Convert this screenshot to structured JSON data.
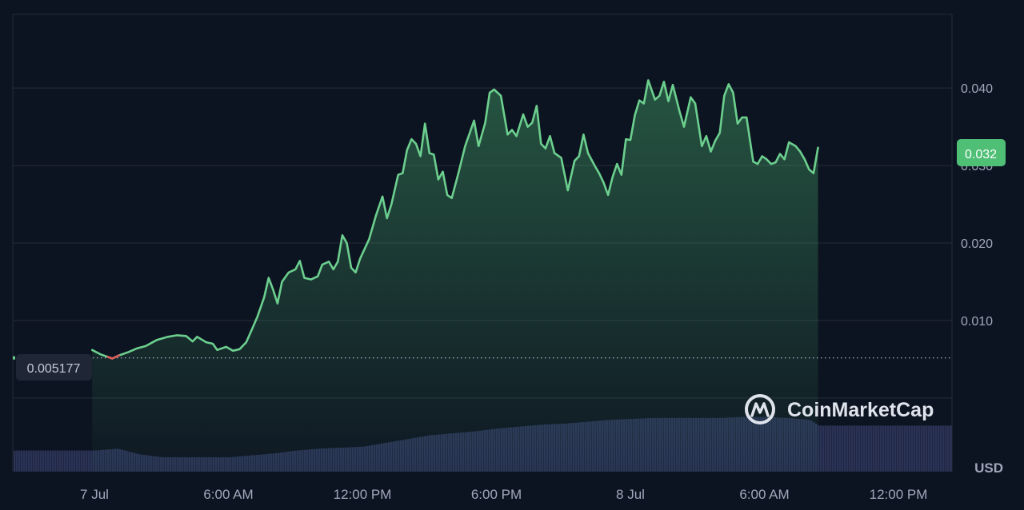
{
  "chart_data": {
    "type": "line",
    "title": "",
    "xlabel": "",
    "ylabel": "",
    "unit_label": "USD",
    "current_value_label": "0.032",
    "reference_label": "0.005177",
    "reference_value": 0.005177,
    "ylim": [
      -0.0095,
      0.0495
    ],
    "y_ticks": [
      0.01,
      0.02,
      0.03,
      0.04
    ],
    "y_tick_labels": [
      "0.010",
      "0.020",
      "0.030",
      "0.040"
    ],
    "x_ticks": [
      {
        "label": "7 Jul",
        "t": 0
      },
      {
        "label": "6:00 AM",
        "t": 6
      },
      {
        "label": "12:00 PM",
        "t": 12
      },
      {
        "label": "6:00 PM",
        "t": 18
      },
      {
        "label": "8 Jul",
        "t": 24
      },
      {
        "label": "6:00 AM",
        "t": 30
      },
      {
        "label": "12:00 PM",
        "t": 36
      }
    ],
    "x_range_hours": [
      -3.5,
      38.4
    ],
    "grid": true,
    "legend": "none",
    "brand": "CoinMarketCap",
    "colors": {
      "background": "#0d1421",
      "up_line": "#6ccf8e",
      "down_line": "#e05a5a",
      "volume": "#2a3356",
      "grid": "#252b39",
      "badge": "#4fbf76"
    },
    "series": [
      {
        "values": [
          [
            -0.1,
            0.0062
          ],
          [
            0.3,
            0.0056
          ],
          [
            0.6,
            0.0053
          ],
          [
            0.8,
            0.0051
          ],
          [
            1.1,
            0.0055
          ],
          [
            1.5,
            0.0059
          ],
          [
            1.9,
            0.0064
          ],
          [
            2.3,
            0.0067
          ],
          [
            2.8,
            0.0075
          ],
          [
            3.3,
            0.0079
          ],
          [
            3.7,
            0.0081
          ],
          [
            4.1,
            0.008
          ],
          [
            4.4,
            0.0073
          ],
          [
            4.6,
            0.0079
          ],
          [
            5.0,
            0.0072
          ],
          [
            5.3,
            0.007
          ],
          [
            5.5,
            0.0062
          ],
          [
            5.9,
            0.0066
          ],
          [
            6.2,
            0.0061
          ],
          [
            6.5,
            0.0063
          ],
          [
            6.8,
            0.0072
          ],
          [
            7.0,
            0.0085
          ],
          [
            7.3,
            0.0105
          ],
          [
            7.6,
            0.013
          ],
          [
            7.8,
            0.0155
          ],
          [
            8.0,
            0.014
          ],
          [
            8.2,
            0.0122
          ],
          [
            8.4,
            0.015
          ],
          [
            8.7,
            0.0162
          ],
          [
            9.0,
            0.0166
          ],
          [
            9.2,
            0.0177
          ],
          [
            9.4,
            0.0155
          ],
          [
            9.7,
            0.0153
          ],
          [
            10.0,
            0.0157
          ],
          [
            10.2,
            0.0172
          ],
          [
            10.5,
            0.0176
          ],
          [
            10.7,
            0.0166
          ],
          [
            10.9,
            0.0176
          ],
          [
            11.1,
            0.021
          ],
          [
            11.3,
            0.02
          ],
          [
            11.5,
            0.0168
          ],
          [
            11.7,
            0.0162
          ],
          [
            11.9,
            0.018
          ],
          [
            12.3,
            0.0205
          ],
          [
            12.6,
            0.0235
          ],
          [
            12.9,
            0.026
          ],
          [
            13.1,
            0.0232
          ],
          [
            13.3,
            0.025
          ],
          [
            13.6,
            0.0288
          ],
          [
            13.8,
            0.029
          ],
          [
            14.0,
            0.032
          ],
          [
            14.2,
            0.0334
          ],
          [
            14.4,
            0.0328
          ],
          [
            14.6,
            0.0312
          ],
          [
            14.8,
            0.0354
          ],
          [
            15.0,
            0.0316
          ],
          [
            15.2,
            0.0314
          ],
          [
            15.4,
            0.0282
          ],
          [
            15.6,
            0.0292
          ],
          [
            15.8,
            0.0262
          ],
          [
            16.0,
            0.0258
          ],
          [
            16.3,
            0.029
          ],
          [
            16.6,
            0.0325
          ],
          [
            17.0,
            0.0358
          ],
          [
            17.2,
            0.0325
          ],
          [
            17.5,
            0.0355
          ],
          [
            17.7,
            0.0394
          ],
          [
            17.9,
            0.0398
          ],
          [
            18.2,
            0.039
          ],
          [
            18.5,
            0.034
          ],
          [
            18.7,
            0.0346
          ],
          [
            18.9,
            0.0338
          ],
          [
            19.2,
            0.0366
          ],
          [
            19.4,
            0.035
          ],
          [
            19.6,
            0.0355
          ],
          [
            19.8,
            0.0377
          ],
          [
            20.0,
            0.0328
          ],
          [
            20.2,
            0.0322
          ],
          [
            20.4,
            0.0338
          ],
          [
            20.6,
            0.0316
          ],
          [
            20.9,
            0.031
          ],
          [
            21.2,
            0.0268
          ],
          [
            21.5,
            0.0306
          ],
          [
            21.7,
            0.0312
          ],
          [
            21.9,
            0.034
          ],
          [
            22.1,
            0.0316
          ],
          [
            22.4,
            0.03
          ],
          [
            22.6,
            0.029
          ],
          [
            22.8,
            0.0278
          ],
          [
            23.0,
            0.0262
          ],
          [
            23.2,
            0.0285
          ],
          [
            23.4,
            0.0302
          ],
          [
            23.6,
            0.0288
          ],
          [
            23.8,
            0.0334
          ],
          [
            24.0,
            0.0333
          ],
          [
            24.2,
            0.0365
          ],
          [
            24.4,
            0.0384
          ],
          [
            24.6,
            0.038
          ],
          [
            24.8,
            0.041
          ],
          [
            25.1,
            0.0385
          ],
          [
            25.3,
            0.039
          ],
          [
            25.5,
            0.0408
          ],
          [
            25.7,
            0.0383
          ],
          [
            25.9,
            0.0404
          ],
          [
            26.2,
            0.037
          ],
          [
            26.4,
            0.035
          ],
          [
            26.7,
            0.0388
          ],
          [
            26.9,
            0.038
          ],
          [
            27.2,
            0.0325
          ],
          [
            27.4,
            0.0338
          ],
          [
            27.6,
            0.0318
          ],
          [
            27.8,
            0.0332
          ],
          [
            28.0,
            0.0342
          ],
          [
            28.2,
            0.039
          ],
          [
            28.4,
            0.0405
          ],
          [
            28.6,
            0.0394
          ],
          [
            28.8,
            0.0354
          ],
          [
            29.0,
            0.0362
          ],
          [
            29.2,
            0.0362
          ],
          [
            29.5,
            0.0305
          ],
          [
            29.7,
            0.0302
          ],
          [
            29.9,
            0.0312
          ],
          [
            30.1,
            0.0308
          ],
          [
            30.3,
            0.0302
          ],
          [
            30.5,
            0.0304
          ],
          [
            30.7,
            0.0315
          ],
          [
            30.9,
            0.0308
          ],
          [
            31.1,
            0.033
          ],
          [
            31.4,
            0.0325
          ],
          [
            31.6,
            0.0318
          ],
          [
            31.8,
            0.0308
          ],
          [
            32.0,
            0.0295
          ],
          [
            32.2,
            0.029
          ],
          [
            32.4,
            0.0323
          ]
        ]
      }
    ],
    "volume": [
      [
        -3.5,
        0.22
      ],
      [
        0,
        0.22
      ],
      [
        1.0,
        0.24
      ],
      [
        2.0,
        0.18
      ],
      [
        3.0,
        0.15
      ],
      [
        4.0,
        0.15
      ],
      [
        5.0,
        0.15
      ],
      [
        6.0,
        0.15
      ],
      [
        7.0,
        0.17
      ],
      [
        8.0,
        0.19
      ],
      [
        9.0,
        0.22
      ],
      [
        10.0,
        0.24
      ],
      [
        11.0,
        0.25
      ],
      [
        12.0,
        0.26
      ],
      [
        13.0,
        0.3
      ],
      [
        14.0,
        0.34
      ],
      [
        15.0,
        0.38
      ],
      [
        16.0,
        0.4
      ],
      [
        17.0,
        0.42
      ],
      [
        18.0,
        0.45
      ],
      [
        19.0,
        0.47
      ],
      [
        20.0,
        0.49
      ],
      [
        21.0,
        0.5
      ],
      [
        22.0,
        0.52
      ],
      [
        23.0,
        0.54
      ],
      [
        24.0,
        0.55
      ],
      [
        25.0,
        0.56
      ],
      [
        26.0,
        0.56
      ],
      [
        27.0,
        0.56
      ],
      [
        28.0,
        0.56
      ],
      [
        29.0,
        0.57
      ],
      [
        30.0,
        0.57
      ],
      [
        31.0,
        0.56
      ],
      [
        32.0,
        0.54
      ],
      [
        32.4,
        0.48
      ]
    ]
  }
}
